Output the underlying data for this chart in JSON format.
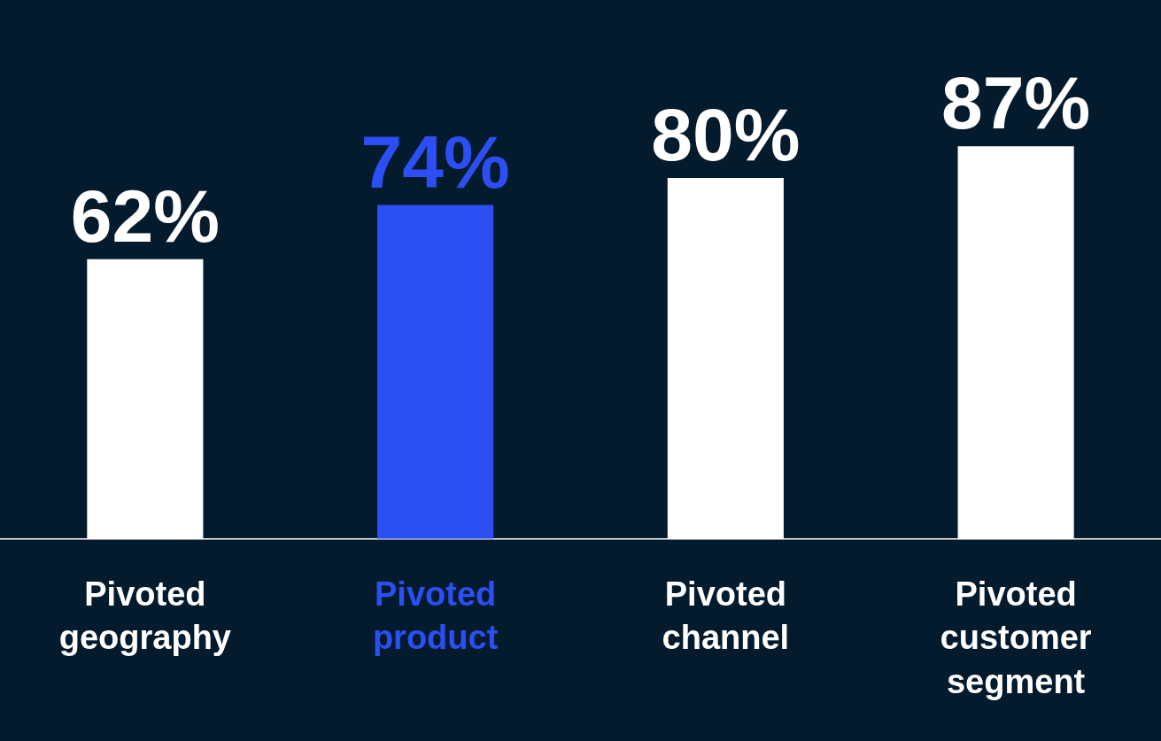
{
  "chart_data": {
    "type": "bar",
    "categories": [
      "Pivoted geography",
      "Pivoted product",
      "Pivoted channel",
      "Pivoted customer segment"
    ],
    "values": [
      62,
      74,
      80,
      87
    ],
    "colors": [
      "#ffffff",
      "#2b4ff2",
      "#ffffff",
      "#ffffff"
    ],
    "value_labels": [
      "62%",
      "74%",
      "80%",
      "87%"
    ],
    "tick_labels": "x"
  }
}
